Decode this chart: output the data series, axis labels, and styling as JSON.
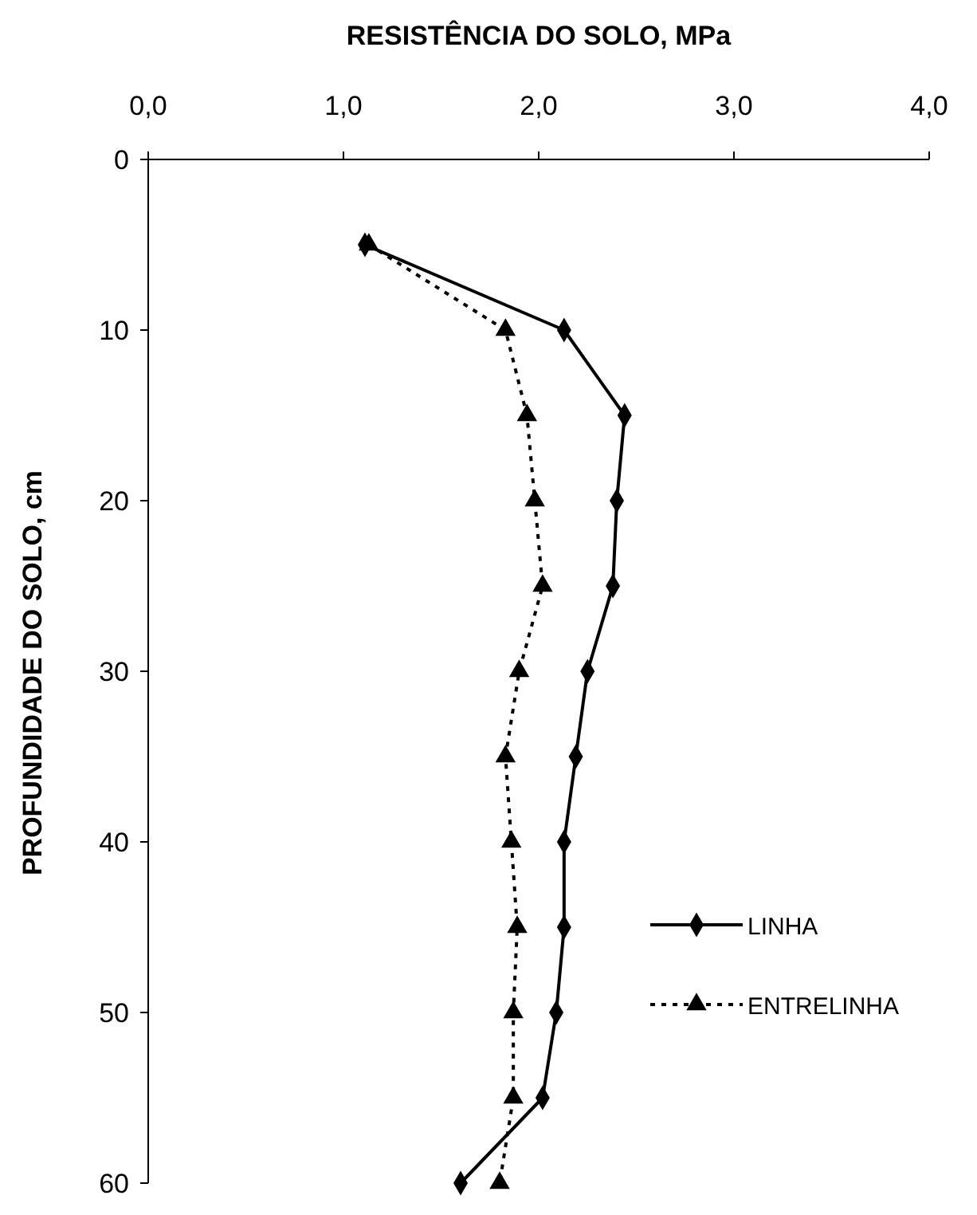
{
  "chart_data": {
    "type": "line",
    "xlabel": "RESISTÊNCIA DO SOLO, MPa",
    "ylabel": "PROFUNDIDADE DO SOLO, cm",
    "xlim": [
      0,
      4
    ],
    "xticks": [
      {
        "value": 0,
        "label": "0,0"
      },
      {
        "value": 1,
        "label": "1,0"
      },
      {
        "value": 2,
        "label": "2,0"
      },
      {
        "value": 3,
        "label": "3,0"
      },
      {
        "value": 4,
        "label": "4,0"
      }
    ],
    "ylim": [
      60,
      0
    ],
    "yticks": [
      0,
      10,
      20,
      30,
      40,
      50,
      60
    ],
    "grid": false,
    "legend": "bottom right",
    "orientation": "horizontal",
    "x": [
      5,
      10,
      15,
      20,
      25,
      30,
      35,
      40,
      45,
      50,
      55,
      60
    ],
    "series": [
      {
        "name": "LINHA",
        "color": "#000000",
        "marker": "diamond",
        "line_style": "solid",
        "values": [
          1.11,
          2.13,
          2.44,
          2.4,
          2.38,
          2.25,
          2.19,
          2.13,
          2.13,
          2.09,
          2.02,
          1.6
        ]
      },
      {
        "name": "ENTRELINHA",
        "color": "#000000",
        "marker": "triangle",
        "line_style": "dotted",
        "values": [
          1.13,
          1.83,
          1.94,
          1.98,
          2.02,
          1.9,
          1.83,
          1.86,
          1.89,
          1.87,
          1.87,
          1.8
        ]
      }
    ]
  }
}
